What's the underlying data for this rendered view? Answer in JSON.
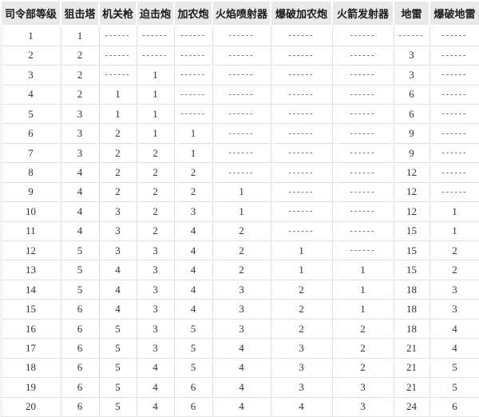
{
  "colors": {
    "header_bg": "#e9e9e9",
    "grid_border": "#e2e2e2",
    "header_text": "#1a1a1a",
    "cell_text": "#333333"
  },
  "table": {
    "empty_marker": "------",
    "columns": [
      "司令部等级",
      "狙击塔",
      "机关枪",
      "迫击炮",
      "加农炮",
      "火焰喷射器",
      "爆破加农炮",
      "火箭发射器",
      "地雷",
      "爆破地雷"
    ],
    "rows": [
      [
        "1",
        "1",
        "------",
        "------",
        "------",
        "------",
        "------",
        "------",
        "------",
        "------"
      ],
      [
        "2",
        "2",
        "------",
        "------",
        "------",
        "------",
        "------",
        "------",
        "3",
        "------"
      ],
      [
        "3",
        "2",
        "------",
        "1",
        "------",
        "------",
        "------",
        "------",
        "3",
        "------"
      ],
      [
        "4",
        "2",
        "1",
        "1",
        "------",
        "------",
        "------",
        "------",
        "6",
        "------"
      ],
      [
        "5",
        "3",
        "1",
        "1",
        "------",
        "------",
        "------",
        "------",
        "6",
        "------"
      ],
      [
        "6",
        "3",
        "2",
        "1",
        "1",
        "------",
        "------",
        "------",
        "9",
        "------"
      ],
      [
        "7",
        "3",
        "2",
        "2",
        "1",
        "------",
        "------",
        "------",
        "9",
        "------"
      ],
      [
        "8",
        "4",
        "2",
        "2",
        "2",
        "------",
        "------",
        "------",
        "12",
        "------"
      ],
      [
        "9",
        "4",
        "2",
        "2",
        "2",
        "1",
        "------",
        "------",
        "12",
        "------"
      ],
      [
        "10",
        "4",
        "3",
        "2",
        "3",
        "1",
        "------",
        "------",
        "12",
        "1"
      ],
      [
        "11",
        "4",
        "3",
        "2",
        "4",
        "2",
        "------",
        "------",
        "15",
        "1"
      ],
      [
        "12",
        "5",
        "3",
        "3",
        "4",
        "2",
        "1",
        "------",
        "15",
        "2"
      ],
      [
        "13",
        "5",
        "4",
        "3",
        "4",
        "2",
        "1",
        "1",
        "15",
        "2"
      ],
      [
        "14",
        "5",
        "4",
        "3",
        "4",
        "3",
        "2",
        "1",
        "18",
        "3"
      ],
      [
        "15",
        "6",
        "4",
        "3",
        "4",
        "3",
        "2",
        "1",
        "18",
        "3"
      ],
      [
        "16",
        "6",
        "5",
        "3",
        "5",
        "3",
        "2",
        "2",
        "18",
        "4"
      ],
      [
        "17",
        "6",
        "5",
        "3",
        "5",
        "4",
        "3",
        "2",
        "21",
        "4"
      ],
      [
        "18",
        "6",
        "5",
        "4",
        "5",
        "4",
        "3",
        "2",
        "21",
        "5"
      ],
      [
        "19",
        "6",
        "5",
        "4",
        "6",
        "4",
        "3",
        "3",
        "21",
        "5"
      ],
      [
        "20",
        "6",
        "5",
        "4",
        "6",
        "4",
        "4",
        "3",
        "24",
        "6"
      ]
    ]
  }
}
